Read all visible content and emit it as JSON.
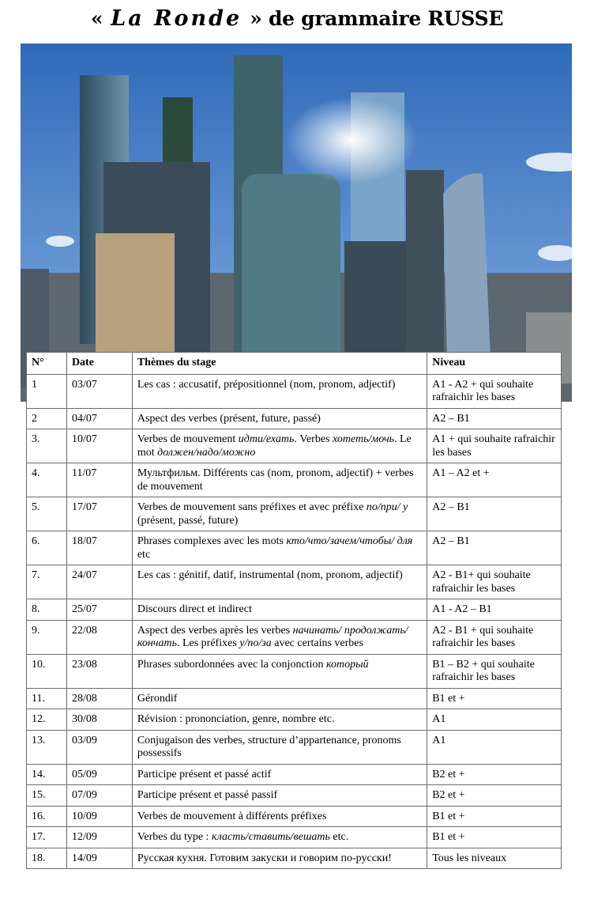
{
  "title": {
    "open_quote": "«",
    "brand": "La Ronde",
    "close_quote": "»",
    "rest": "de grammaire RUSSE"
  },
  "photo": {
    "subject": "Moscow City skyscrapers",
    "sky_color": "#3f78c4"
  },
  "table": {
    "headers": [
      "N°",
      "Date",
      "Thèmes du stage",
      "Niveau"
    ],
    "rows": [
      {
        "n": "1",
        "date": "03/07",
        "theme": [
          {
            "t": "Les cas : accusatif, prépositionnel (nom, pronom, adjectif)"
          }
        ],
        "level": "A1 - A2 + qui souhaite rafraichir les bases"
      },
      {
        "n": "2",
        "date": "04/07",
        "theme": [
          {
            "t": "Aspect des verbes (présent, future, passé)"
          }
        ],
        "level": "A2 – B1"
      },
      {
        "n": "3.",
        "date": "10/07",
        "theme": [
          {
            "t": "Verbes de mouvement "
          },
          {
            "t": "идти/ехать",
            "i": true
          },
          {
            "t": ". Verbes "
          },
          {
            "t": "хотеть/мочь",
            "i": true
          },
          {
            "t": ". Le mot "
          },
          {
            "t": "должен/надо/можно",
            "i": true
          }
        ],
        "level": "A1 + qui souhaite rafraichir les bases"
      },
      {
        "n": "4.",
        "date": "11/07",
        "theme": [
          {
            "t": "Мультфильм. Différents cas (nom, pronom, adjectif) + verbes de mouvement"
          }
        ],
        "level": "A1 – A2 et +"
      },
      {
        "n": "5.",
        "date": "17/07",
        "theme": [
          {
            "t": "Verbes de mouvement sans préfixes et avec préfixe "
          },
          {
            "t": "по/при/ у",
            "i": true
          },
          {
            "t": " (présent, passé, future)"
          }
        ],
        "level": "A2 – B1"
      },
      {
        "n": "6.",
        "date": "18/07",
        "theme": [
          {
            "t": "Phrases complexes avec les mots "
          },
          {
            "t": "кто/что/зачем/чтобы/ для",
            "i": true
          },
          {
            "t": " etc"
          }
        ],
        "level": "A2 – B1"
      },
      {
        "n": "7.",
        "date": "24/07",
        "theme": [
          {
            "t": "Les cas : génitif,  datif, instrumental  (nom, pronom, adjectif)"
          }
        ],
        "level": "A2 - B1+ qui souhaite rafraichir les bases"
      },
      {
        "n": "8.",
        "date": "25/07",
        "theme": [
          {
            "t": "Discours direct et indirect"
          }
        ],
        "level": "A1 - A2 – B1"
      },
      {
        "n": "9.",
        "date": "22/08",
        "theme": [
          {
            "t": "Aspect des verbes après les verbes "
          },
          {
            "t": "начинать/ продолжать/кончать",
            "i": true
          },
          {
            "t": ". Les préfixes "
          },
          {
            "t": "у/по/за",
            "i": true
          },
          {
            "t": " avec certains verbes"
          }
        ],
        "level": "A2 - B1 + qui souhaite rafraichir les bases"
      },
      {
        "n": "10.",
        "date": "23/08",
        "theme": [
          {
            "t": "Phrases subordonnées avec la conjonction "
          },
          {
            "t": "который",
            "i": true
          }
        ],
        "level": "B1 – B2 + qui souhaite rafraichir les bases"
      },
      {
        "n": "11.",
        "date": "28/08",
        "theme": [
          {
            "t": "Gérondif"
          }
        ],
        "level": "B1 et +"
      },
      {
        "n": "12.",
        "date": "30/08",
        "theme": [
          {
            "t": "Révision : prononciation, genre, nombre etc."
          }
        ],
        "level": "A1"
      },
      {
        "n": "13.",
        "date": "03/09",
        "theme": [
          {
            "t": "Conjugaison des verbes, structure d’appartenance,  pronoms possessifs"
          }
        ],
        "level": "A1"
      },
      {
        "n": "14.",
        "date": "05/09",
        "theme": [
          {
            "t": "Participe présent et passé actif"
          }
        ],
        "level": "B2 et +"
      },
      {
        "n": "15.",
        "date": "07/09",
        "theme": [
          {
            "t": "Participe présent et passé passif"
          }
        ],
        "level": "B2 et +"
      },
      {
        "n": "16.",
        "date": "10/09",
        "theme": [
          {
            "t": "Verbes de mouvement à différents préfixes"
          }
        ],
        "level": "B1 et +"
      },
      {
        "n": "17.",
        "date": "12/09",
        "theme": [
          {
            "t": "Verbes du type : "
          },
          {
            "t": "класть/ставить/вешать",
            "i": true
          },
          {
            "t": " etc."
          }
        ],
        "level": "B1 et +"
      },
      {
        "n": "18.",
        "date": "14/09",
        "theme": [
          {
            "t": "Русская кухня. Готовим закуски и говорим по-русски!"
          }
        ],
        "level": "Tous les niveaux"
      }
    ]
  }
}
